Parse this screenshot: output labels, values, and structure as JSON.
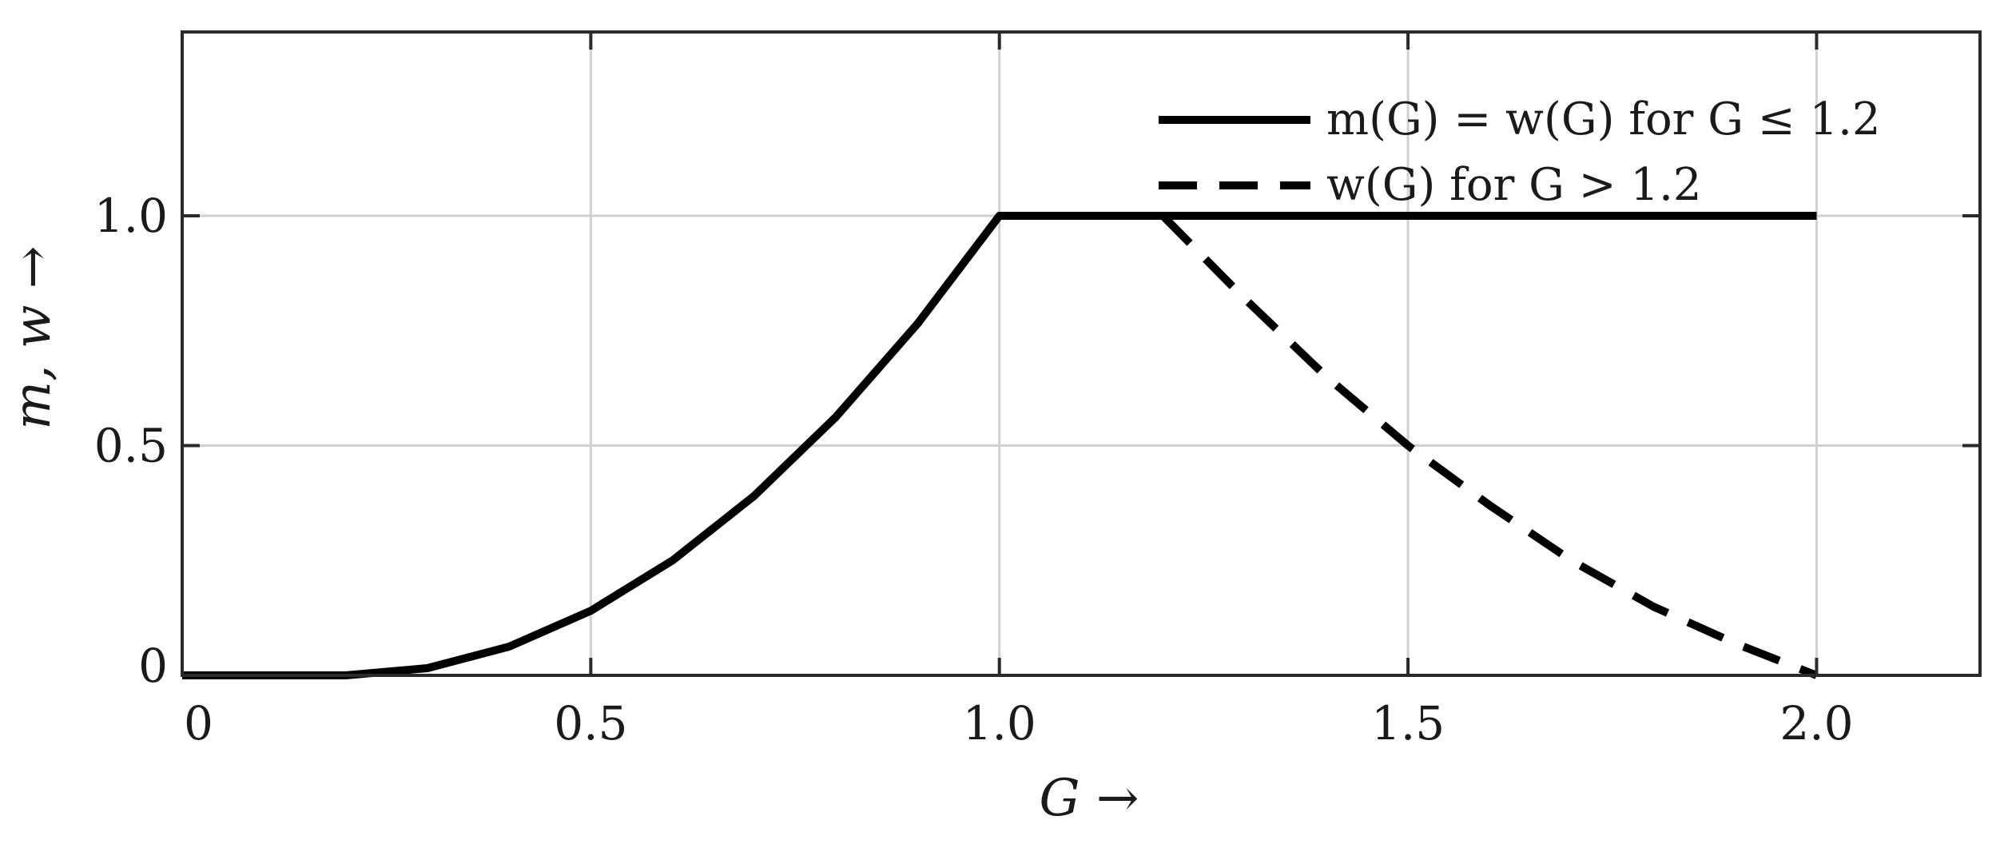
{
  "chart_data": {
    "type": "line",
    "title": "",
    "xlabel": "G →",
    "ylabel": "m, w →",
    "xlim": [
      0,
      2.2
    ],
    "ylim": [
      0,
      1.4
    ],
    "x_ticks": [
      0,
      0.5,
      1.0,
      1.5,
      2.0
    ],
    "x_tick_labels": [
      "0",
      "0.5",
      "1.0",
      "1.5",
      "2.0"
    ],
    "y_ticks": [
      0,
      0.5,
      1.0
    ],
    "y_tick_labels": [
      "0",
      "0.5",
      "1.0"
    ],
    "grid": true,
    "legend_position": "top-right",
    "colors": {
      "line": "#000000",
      "grid": "#d0d0d0",
      "frame": "#2a2a2a"
    },
    "series": [
      {
        "name": "m(G) = w(G) for G ≤ 1.2",
        "style": "solid",
        "x": [
          0,
          0.2,
          0.3,
          0.4,
          0.5,
          0.6,
          0.7,
          0.8,
          0.9,
          1.0,
          1.2,
          1.4,
          1.6,
          1.8,
          2.0
        ],
        "y": [
          0,
          0,
          0.0156,
          0.0625,
          0.1406,
          0.25,
          0.3906,
          0.5625,
          0.7656,
          1.0,
          1.0,
          1.0,
          1.0,
          1.0,
          1.0
        ]
      },
      {
        "name": "w(G) for G > 1.2",
        "style": "dashed",
        "x": [
          1.2,
          1.3,
          1.4,
          1.5,
          1.6,
          1.7,
          1.8,
          1.9,
          2.0
        ],
        "y": [
          1.0,
          0.82,
          0.65,
          0.5,
          0.37,
          0.25,
          0.15,
          0.07,
          0.0
        ]
      }
    ]
  }
}
